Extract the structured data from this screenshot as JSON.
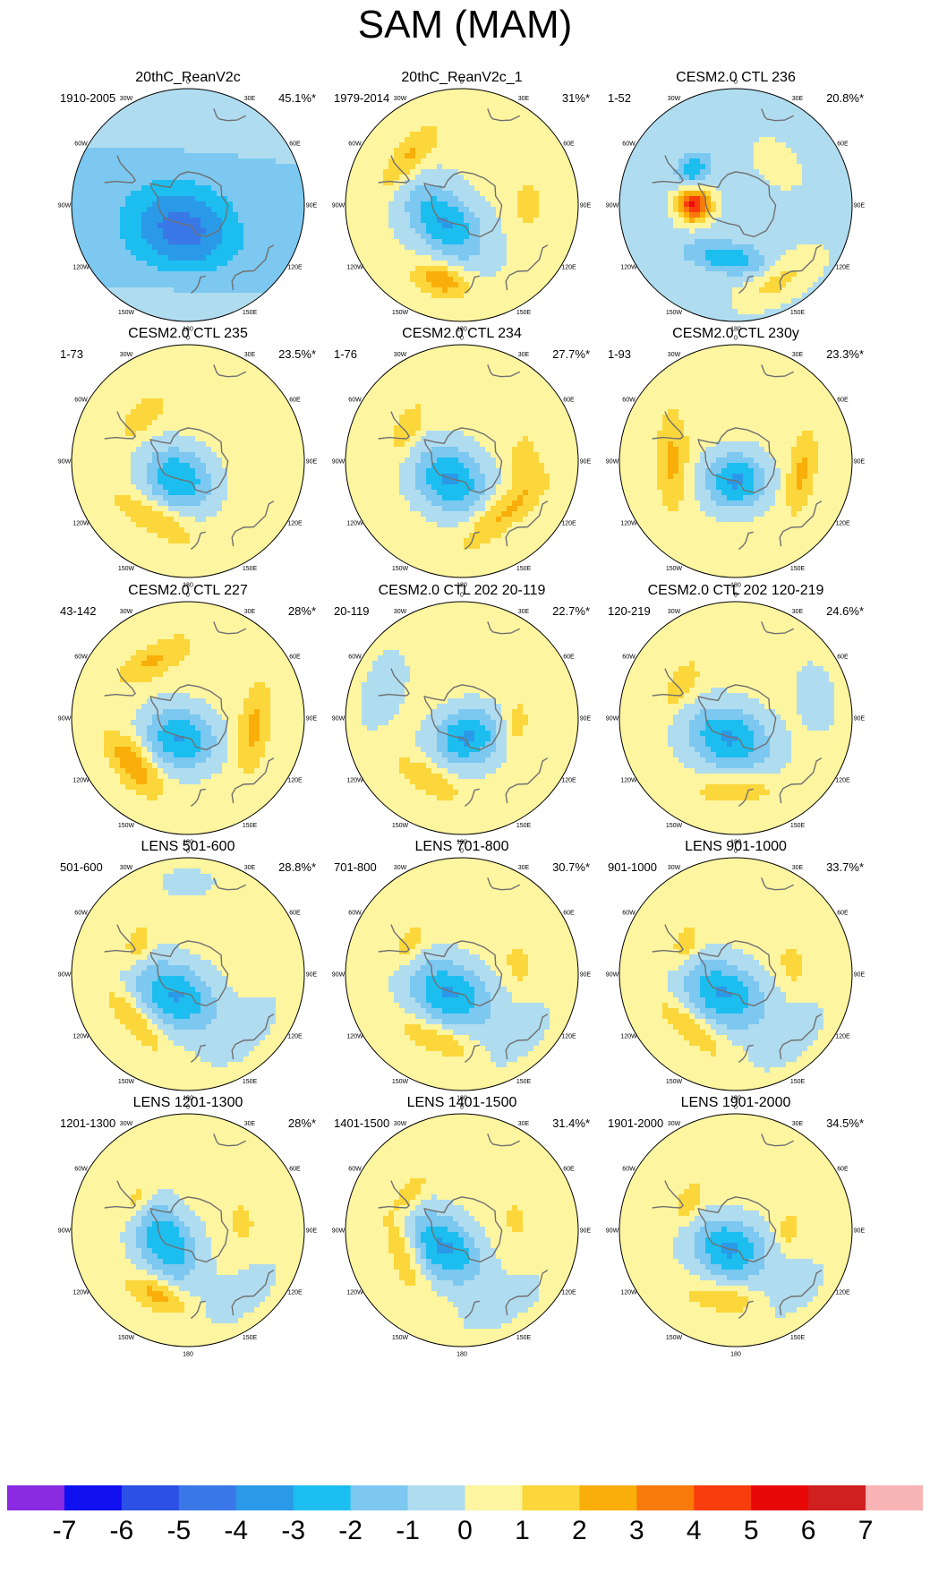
{
  "title": "SAM (MAM)",
  "longitude_labels": [
    "0",
    "30E",
    "60E",
    "90E",
    "120E",
    "150E",
    "180",
    "150W",
    "120W",
    "90W",
    "60W",
    "30W"
  ],
  "colors": {
    "background": "#ffffff",
    "coast": "#707070",
    "outline": "#000000",
    "ocean_neutral": "#fdf5a0",
    "levels": [
      "#8a2be2",
      "#1010f0",
      "#2c50e6",
      "#3a78e8",
      "#2a9ae8",
      "#1cbef0",
      "#7cc8f0",
      "#b0dcf0",
      "#fdf5a0",
      "#fcd73c",
      "#f9ae0a",
      "#f87a0a",
      "#f83c0c",
      "#e80808",
      "#d02020",
      "#f8b4b4"
    ]
  },
  "chart_data": {
    "type": "heatmap",
    "projection": "south-polar-stereographic",
    "title": "SAM (MAM)",
    "colorbar": {
      "tick_labels": [
        "-7",
        "-6",
        "-5",
        "-4",
        "-3",
        "-2",
        "-1",
        "0",
        "1",
        "2",
        "3",
        "4",
        "5",
        "6",
        "7"
      ],
      "levels": [
        -7,
        -6,
        -5,
        -4,
        -3,
        -2,
        -1,
        0,
        1,
        2,
        3,
        4,
        5,
        6,
        7
      ]
    },
    "panels": [
      {
        "title": "20thC_ReanV2c",
        "range": "1910-2005",
        "variance": "45.1%*",
        "features": [
          {
            "lon": 195,
            "lat": -75,
            "value": -3.5,
            "width_deg": 26,
            "stretch": 1.3
          },
          {
            "lon": 0,
            "lat": -35,
            "value": 0.6,
            "width_deg": 18,
            "stretch": 2.2
          },
          {
            "lon": 180,
            "lat": -38,
            "value": 0.5,
            "width_deg": 14,
            "stretch": 2.5
          }
        ],
        "base": -1
      },
      {
        "title": "20thC_ReanV2c_1",
        "range": "1979-2014",
        "variance": "31%*",
        "features": [
          {
            "lon": 225,
            "lat": -75,
            "value": -3.3,
            "width_deg": 17,
            "stretch": 1.6
          },
          {
            "lon": 195,
            "lat": -43,
            "value": 2.6,
            "width_deg": 10,
            "stretch": 1.7
          },
          {
            "lon": 312,
            "lat": -47,
            "value": 2.0,
            "width_deg": 9,
            "stretch": 3.0
          },
          {
            "lon": 90,
            "lat": -50,
            "value": 1.6,
            "width_deg": 8,
            "stretch": 1.8
          }
        ],
        "base": 0.2
      },
      {
        "title": "CESM2.0 CTL 236",
        "range": "1-52",
        "variance": "20.8%*",
        "features": [
          {
            "lon": 270,
            "lat": -65,
            "value": 5.5,
            "width_deg": 10,
            "stretch": 1.0
          },
          {
            "lon": 310,
            "lat": -57,
            "value": -2.5,
            "width_deg": 9,
            "stretch": 1.2
          },
          {
            "lon": 190,
            "lat": -58,
            "value": -2.5,
            "width_deg": 9,
            "stretch": 2.6
          },
          {
            "lon": 150,
            "lat": -38,
            "value": 1.7,
            "width_deg": 11,
            "stretch": 2.3
          },
          {
            "lon": 45,
            "lat": -55,
            "value": 0.8,
            "width_deg": 12,
            "stretch": 1.5
          }
        ],
        "base": -0.3
      },
      {
        "title": "CESM2.0 CTL 235",
        "range": "1-73",
        "variance": "23.5%*",
        "features": [
          {
            "lon": 210,
            "lat": -78,
            "value": -3.4,
            "width_deg": 18,
            "stretch": 1.2
          },
          {
            "lon": 210,
            "lat": -50,
            "value": 1.7,
            "width_deg": 9,
            "stretch": 3.0
          },
          {
            "lon": 315,
            "lat": -52,
            "value": 1.4,
            "width_deg": 8,
            "stretch": 2.2
          }
        ],
        "base": 0.4
      },
      {
        "title": "CESM2.0 CTL 234",
        "range": "1-76",
        "variance": "27.7%*",
        "features": [
          {
            "lon": 215,
            "lat": -77,
            "value": -3.6,
            "width_deg": 19,
            "stretch": 1.2
          },
          {
            "lon": 140,
            "lat": -50,
            "value": 1.9,
            "width_deg": 9,
            "stretch": 3.5
          },
          {
            "lon": 300,
            "lat": -52,
            "value": 1.4,
            "width_deg": 8,
            "stretch": 2.2
          },
          {
            "lon": 90,
            "lat": -52,
            "value": 1.5,
            "width_deg": 8,
            "stretch": 1.8
          }
        ],
        "base": 0.4
      },
      {
        "title": "CESM2.0 CTL 230y",
        "range": "1-93",
        "variance": "23.3%*",
        "features": [
          {
            "lon": 180,
            "lat": -78,
            "value": -3.6,
            "width_deg": 17,
            "stretch": 1.1
          },
          {
            "lon": 270,
            "lat": -52,
            "value": 1.9,
            "width_deg": 9,
            "stretch": 3.2
          },
          {
            "lon": 100,
            "lat": -50,
            "value": 1.9,
            "width_deg": 8,
            "stretch": 3.0
          }
        ],
        "base": 0.4
      },
      {
        "title": "CESM2.0 CTL 227",
        "range": "43-142",
        "variance": "28%*",
        "features": [
          {
            "lon": 200,
            "lat": -77,
            "value": -3.5,
            "width_deg": 18,
            "stretch": 1.2
          },
          {
            "lon": 230,
            "lat": -47,
            "value": 2.6,
            "width_deg": 10,
            "stretch": 2.2
          },
          {
            "lon": 100,
            "lat": -50,
            "value": 1.9,
            "width_deg": 9,
            "stretch": 3.0
          },
          {
            "lon": 330,
            "lat": -50,
            "value": 1.8,
            "width_deg": 9,
            "stretch": 2.6
          }
        ],
        "base": 0.4
      },
      {
        "title": "CESM2.0 CTL 202 20-119",
        "range": "20-119",
        "variance": "22.7%*",
        "features": [
          {
            "lon": 165,
            "lat": -78,
            "value": -3.6,
            "width_deg": 17,
            "stretch": 1.2
          },
          {
            "lon": 210,
            "lat": -48,
            "value": 1.7,
            "width_deg": 8,
            "stretch": 2.6
          },
          {
            "lon": 95,
            "lat": -57,
            "value": 1.5,
            "width_deg": 7,
            "stretch": 1.8
          },
          {
            "lon": 290,
            "lat": -40,
            "value": -0.8,
            "width_deg": 15,
            "stretch": 2.0
          }
        ],
        "base": 0.4
      },
      {
        "title": "CESM2.0 CTL 202 120-219",
        "range": "120-219",
        "variance": "24.6%*",
        "features": [
          {
            "lon": 200,
            "lat": -77,
            "value": -3.5,
            "width_deg": 19,
            "stretch": 1.4
          },
          {
            "lon": 180,
            "lat": -47,
            "value": 1.7,
            "width_deg": 8,
            "stretch": 2.8
          },
          {
            "lon": 300,
            "lat": -52,
            "value": 1.6,
            "width_deg": 8,
            "stretch": 2.0
          },
          {
            "lon": 75,
            "lat": -40,
            "value": -0.8,
            "width_deg": 14,
            "stretch": 1.8
          }
        ],
        "base": 0.4
      },
      {
        "title": "LENS 501-600",
        "range": "501-600",
        "variance": "28.8%*",
        "features": [
          {
            "lon": 210,
            "lat": -75,
            "value": -3.5,
            "width_deg": 19,
            "stretch": 1.4
          },
          {
            "lon": 230,
            "lat": -48,
            "value": 1.8,
            "width_deg": 8,
            "stretch": 3.0
          },
          {
            "lon": 300,
            "lat": -55,
            "value": 1.5,
            "width_deg": 7,
            "stretch": 1.8
          },
          {
            "lon": 135,
            "lat": -42,
            "value": -0.8,
            "width_deg": 14,
            "stretch": 2.2
          },
          {
            "lon": 0,
            "lat": -35,
            "value": -0.7,
            "width_deg": 11,
            "stretch": 2.0
          }
        ],
        "base": 0.4
      },
      {
        "title": "LENS 701-800",
        "range": "701-800",
        "variance": "30.7%*",
        "features": [
          {
            "lon": 210,
            "lat": -76,
            "value": -3.5,
            "width_deg": 19,
            "stretch": 1.4
          },
          {
            "lon": 200,
            "lat": -48,
            "value": 1.8,
            "width_deg": 8,
            "stretch": 3.0
          },
          {
            "lon": 300,
            "lat": -54,
            "value": 1.5,
            "width_deg": 7,
            "stretch": 1.8
          },
          {
            "lon": 80,
            "lat": -55,
            "value": 1.4,
            "width_deg": 7,
            "stretch": 1.6
          },
          {
            "lon": 140,
            "lat": -40,
            "value": -0.8,
            "width_deg": 14,
            "stretch": 2.2
          }
        ],
        "base": 0.4
      },
      {
        "title": "LENS 901-1000",
        "range": "901-1000",
        "variance": "33.7%*",
        "features": [
          {
            "lon": 210,
            "lat": -76,
            "value": -3.5,
            "width_deg": 19,
            "stretch": 1.4
          },
          {
            "lon": 220,
            "lat": -48,
            "value": 1.8,
            "width_deg": 8,
            "stretch": 3.0
          },
          {
            "lon": 300,
            "lat": -55,
            "value": 1.5,
            "width_deg": 7,
            "stretch": 1.8
          },
          {
            "lon": 80,
            "lat": -55,
            "value": 1.4,
            "width_deg": 7,
            "stretch": 1.6
          },
          {
            "lon": 140,
            "lat": -40,
            "value": -0.8,
            "width_deg": 14,
            "stretch": 2.2
          }
        ],
        "base": 0.4
      },
      {
        "title": "LENS 1201-1300",
        "range": "1201-1300",
        "variance": "28%*",
        "features": [
          {
            "lon": 240,
            "lat": -75,
            "value": -3.4,
            "width_deg": 17,
            "stretch": 1.5
          },
          {
            "lon": 205,
            "lat": -47,
            "value": 2.4,
            "width_deg": 8,
            "stretch": 2.2
          },
          {
            "lon": 300,
            "lat": -55,
            "value": 1.5,
            "width_deg": 7,
            "stretch": 1.8
          },
          {
            "lon": 80,
            "lat": -57,
            "value": 1.5,
            "width_deg": 6,
            "stretch": 1.6
          },
          {
            "lon": 140,
            "lat": -40,
            "value": -0.8,
            "width_deg": 14,
            "stretch": 2.2
          }
        ],
        "base": 0.4
      },
      {
        "title": "LENS 1401-1500",
        "range": "1401-1500",
        "variance": "31.4%*",
        "features": [
          {
            "lon": 225,
            "lat": -75,
            "value": -3.6,
            "width_deg": 17,
            "stretch": 1.5
          },
          {
            "lon": 250,
            "lat": -52,
            "value": 1.7,
            "width_deg": 8,
            "stretch": 3.2
          },
          {
            "lon": 305,
            "lat": -52,
            "value": 1.5,
            "width_deg": 7,
            "stretch": 2.0
          },
          {
            "lon": 80,
            "lat": -57,
            "value": 1.4,
            "width_deg": 6,
            "stretch": 1.6
          },
          {
            "lon": 150,
            "lat": -40,
            "value": -0.8,
            "width_deg": 14,
            "stretch": 2.2
          }
        ],
        "base": 0.4
      },
      {
        "title": "LENS 1901-2000",
        "range": "1901-2000",
        "variance": "34.5%*",
        "features": [
          {
            "lon": 200,
            "lat": -78,
            "value": -3.6,
            "width_deg": 18,
            "stretch": 1.3
          },
          {
            "lon": 190,
            "lat": -48,
            "value": 1.6,
            "width_deg": 8,
            "stretch": 3.0
          },
          {
            "lon": 300,
            "lat": -57,
            "value": 1.5,
            "width_deg": 7,
            "stretch": 1.8
          },
          {
            "lon": 90,
            "lat": -58,
            "value": 1.4,
            "width_deg": 6,
            "stretch": 1.6
          },
          {
            "lon": 140,
            "lat": -40,
            "value": -0.8,
            "width_deg": 14,
            "stretch": 2.2
          }
        ],
        "base": 0.4
      }
    ]
  }
}
